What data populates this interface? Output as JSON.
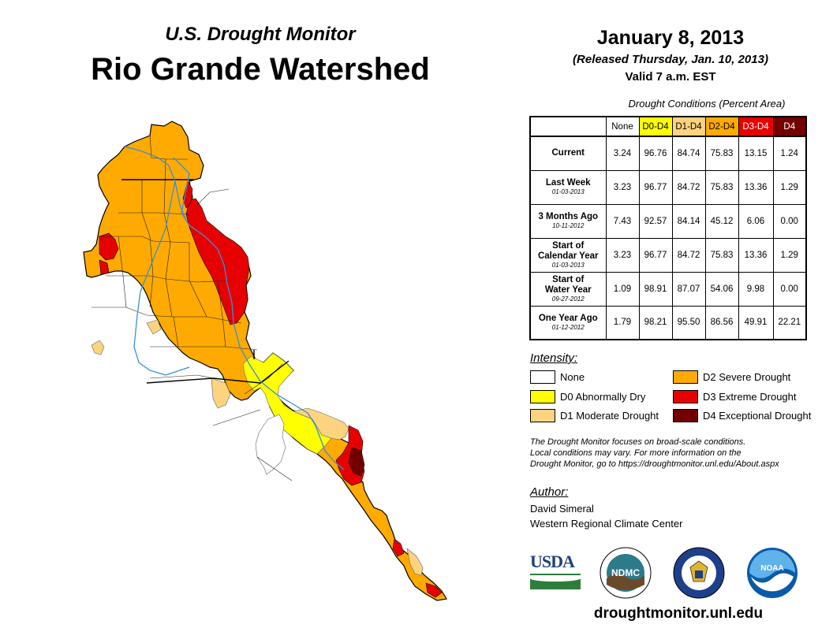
{
  "header": {
    "subtitle": "U.S. Drought Monitor",
    "title": "Rio Grande Watershed",
    "date": "January 8, 2013",
    "released": "(Released Thursday, Jan. 10, 2013)",
    "valid": "Valid 7 a.m. EST"
  },
  "table": {
    "caption": "Drought Conditions (Percent Area)",
    "columns": [
      "None",
      "D0-D4",
      "D1-D4",
      "D2-D4",
      "D3-D4",
      "D4"
    ],
    "rows": [
      {
        "label": "Current",
        "label2": "",
        "date": "",
        "values": [
          "3.24",
          "96.76",
          "84.74",
          "75.83",
          "13.15",
          "1.24"
        ]
      },
      {
        "label": "Last Week",
        "label2": "",
        "date": "01-03-2013",
        "values": [
          "3.23",
          "96.77",
          "84.72",
          "75.83",
          "13.36",
          "1.29"
        ]
      },
      {
        "label": "3 Months Ago",
        "label2": "",
        "date": "10-11-2012",
        "values": [
          "7.43",
          "92.57",
          "84.14",
          "45.12",
          "6.06",
          "0.00"
        ]
      },
      {
        "label": "Start of",
        "label2": "Calendar Year",
        "date": "01-03-2013",
        "values": [
          "3.23",
          "96.77",
          "84.72",
          "75.83",
          "13.36",
          "1.29"
        ]
      },
      {
        "label": "Start of",
        "label2": "Water Year",
        "date": "09-27-2012",
        "values": [
          "1.09",
          "98.91",
          "87.07",
          "54.06",
          "9.98",
          "0.00"
        ]
      },
      {
        "label": "One Year Ago",
        "label2": "",
        "date": "01-12-2012",
        "values": [
          "1.79",
          "98.21",
          "95.50",
          "86.56",
          "49.91",
          "22.21"
        ]
      }
    ]
  },
  "legend": {
    "title": "Intensity:",
    "items": [
      {
        "label": "None",
        "color": "#ffffff"
      },
      {
        "label": "D0 Abnormally Dry",
        "color": "#ffff00"
      },
      {
        "label": "D1 Moderate Drought",
        "color": "#fcd37f"
      },
      {
        "label": "D2 Severe Drought",
        "color": "#ffaa00"
      },
      {
        "label": "D3 Extreme Drought",
        "color": "#e60000"
      },
      {
        "label": "D4 Exceptional Drought",
        "color": "#730000"
      }
    ]
  },
  "note": {
    "line1": "The Drought Monitor focuses on broad-scale conditions.",
    "line2": "Local conditions may vary. For more information on the",
    "line3": "Drought Monitor, go to https://droughtmonitor.unl.edu/About.aspx"
  },
  "author": {
    "label": "Author:",
    "name": "David Simeral",
    "org": "Western Regional Climate Center"
  },
  "logos": {
    "usda": "USDA",
    "ndmc": "NDMC",
    "noaa": "NOAA"
  },
  "website": "droughtmonitor.unl.edu"
}
